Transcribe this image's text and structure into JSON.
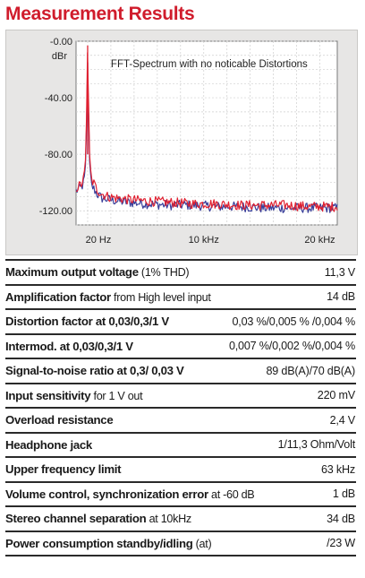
{
  "page": {
    "title": "Measurement Results"
  },
  "chart_data": {
    "type": "line",
    "annotation": "FFT-Spectrum with no noticable Distortions",
    "ylabel": "dBr",
    "ylim": [
      -130,
      0
    ],
    "xlim": [
      0,
      22.5
    ],
    "x_unit": "kHz",
    "y_ticks": [
      {
        "value": 0,
        "label": "-0.00"
      },
      {
        "value": -40,
        "label": "-40.00"
      },
      {
        "value": -80,
        "label": "-80.00"
      },
      {
        "value": -120,
        "label": "-120.00"
      }
    ],
    "x_ticks": [
      {
        "value": 1,
        "label": "20 Hz"
      },
      {
        "value": 11,
        "label": "10 kHz"
      },
      {
        "value": 21,
        "label": "20 kHz"
      }
    ],
    "grid": true,
    "series": [
      {
        "color": "#e02030",
        "x": [
          0,
          0.5,
          0.7,
          0.85,
          1.0,
          1.15,
          1.3,
          1.5,
          1.8,
          2.2,
          2.8,
          3.5,
          4.5,
          6,
          8,
          10,
          12,
          14,
          16,
          18,
          20,
          22
        ],
        "y": [
          -104,
          -101,
          -96,
          -80,
          -3,
          -78,
          -98,
          -100,
          -105,
          -108,
          -110,
          -111,
          -112,
          -113,
          -114,
          -115,
          -115,
          -116,
          -116,
          -116,
          -117,
          -117
        ]
      },
      {
        "color": "#3a3f9a",
        "x": [
          0,
          0.5,
          0.7,
          0.85,
          1.0,
          1.15,
          1.3,
          1.5,
          1.8,
          2.2,
          2.8,
          3.5,
          4.5,
          6,
          8,
          10,
          12,
          14,
          16,
          18,
          20,
          22
        ],
        "y": [
          -106,
          -103,
          -99,
          -84,
          -15,
          -83,
          -102,
          -104,
          -108,
          -111,
          -112,
          -113,
          -114,
          -115,
          -116,
          -116,
          -117,
          -117,
          -118,
          -118,
          -118,
          -118
        ]
      }
    ]
  },
  "specs": [
    {
      "name": "Maximum output voltage",
      "detail": " (1% THD)",
      "value": "11,3 V"
    },
    {
      "name": "Amplification factor",
      "detail": " from High level input",
      "value": "14 dB"
    },
    {
      "name": "Distortion factor at 0,03/0,3/1 V",
      "detail": "",
      "value": "0,03 %/0,005 % /0,004 %"
    },
    {
      "name": "Intermod. at 0,03/0,3/1 V",
      "detail": "",
      "value": "0,007 %/0,002 %/0,004 %"
    },
    {
      "name": "Signal-to-noise ratio at 0,3/ 0,03 V",
      "detail": "",
      "value": "89 dB(A)/70 dB(A)"
    },
    {
      "name": "Input sensitivity",
      "detail": " for 1 V out",
      "value": "220 mV"
    },
    {
      "name": "Overload resistance",
      "detail": "",
      "value": "2,4 V"
    },
    {
      "name": "Headphone jack",
      "detail": "",
      "value": "1/11,3 Ohm/Volt"
    },
    {
      "name": "Upper frequency limit",
      "detail": "",
      "value": "63 kHz"
    },
    {
      "name": "Volume control, synchronization error",
      "detail": " at -60 dB",
      "value": "1 dB"
    },
    {
      "name": "Stereo channel separation",
      "detail": " at 10kHz",
      "value": "34 dB"
    },
    {
      "name": "Power consumption standby/idling",
      "detail": " (at)",
      "value": "/23 W"
    }
  ]
}
